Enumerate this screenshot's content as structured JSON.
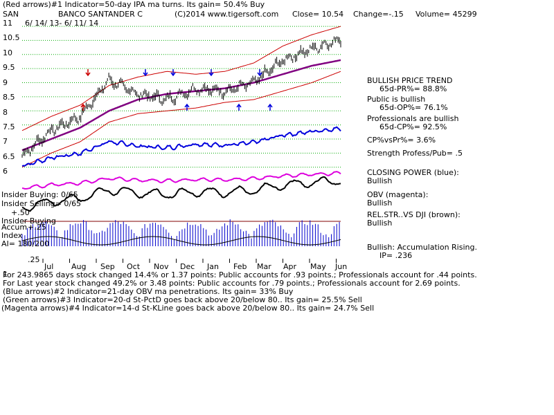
{
  "header": {
    "line1": "(Red arrows)#1 Indicator=50-day IPA ma turns. Its gain= 50.4% Buy",
    "ticker": "SAN",
    "company": "BANCO SANTANDER C",
    "copyright": "(C)2014 www.tigersoft.com",
    "close": "Close= 10.54",
    "change": "Change=-.15",
    "volume": "Volume= 45299",
    "date_range": "6/ 14/ 13- 6/ 11/ 14"
  },
  "price_axis": {
    "ticks": [
      "11",
      "10.5",
      "10",
      "9.5",
      "9",
      "8.5",
      "8",
      "7.5",
      "7",
      "6.5",
      "6"
    ],
    "values": [
      11,
      10.5,
      10,
      9.5,
      9,
      8.5,
      8,
      7.5,
      7,
      6.5,
      6
    ]
  },
  "acc_axis": {
    "ticks": [
      "+.50",
      "+.25",
      ".25"
    ]
  },
  "months": [
    "Jul",
    "Aug",
    "Sep",
    "Oct",
    "Nov",
    "Dec",
    "Jan",
    "Feb",
    "Mar",
    "Apr",
    "May",
    "Jun"
  ],
  "left_labels": {
    "insider_buying_top": "Insider Buying: 0/65",
    "insider_selling": "Insider Selling= 0/65",
    "insider_buying_mid": "Insider Buying",
    "accum": "Accum",
    "index": "Index",
    "ai": "AI= 180/200",
    "bottom_num": "1"
  },
  "right_panel": {
    "trend_title": "BULLISH PRICE TREND",
    "trend_value": "65d-PR%= 88.8%",
    "public_title": "Public is bullish",
    "public_value": "65d-OP%= 76.1%",
    "pro_title": "Professionals are bullish",
    "pro_value": "65d-CP%= 92.5%",
    "cp_vs_pr": "CP%vsPr%= 3.6%",
    "strength": "Strength Profess/Pub= .5",
    "closing_power": "CLOSING POWER (blue):",
    "closing_power_v": "Bullish",
    "obv": "OBV (magenta):",
    "obv_v": "Bullish",
    "relstr": "REL.STR..VS DJI (brown):",
    "relstr_v": "Bullish",
    "accum": "Bullish: Accumulation Rising.",
    "ip": "IP= .236"
  },
  "footer": [
    "For 243.9865 days stock changed 14.4% or 1.37 points: Public accounts for .93 points.; Professionals account for .44 points.",
    "For Last year stock changed 49.2% or 3.48 points: Public accounts for .79 points.; Professionals account for 2.69 points.",
    "(Blue arrows)#2 Indicator=21-day OBV ma penetrations. Its gain= 33% Buy",
    "(Green arrows)#3 Indicator=20-d St-PctD goes back above 20/below 80.. Its gain= 25.5% Sell",
    "(Magenta arrows)#4 Indicator=14-d St-KLine goes back above 20/below 80.. Its gain= 24.7% Sell"
  ],
  "colors": {
    "price": "#000000",
    "band": "#cc0000",
    "ma": "#800080",
    "closing_power": "#0000dd",
    "obv": "#dd00dd",
    "relstr": "#800000",
    "accum": "#0000cc",
    "grid": "#00aa00"
  },
  "chart_data": {
    "type": "line",
    "title": "BANCO SANTANDER C",
    "x": [
      "Jul",
      "Aug",
      "Sep",
      "Oct",
      "Nov",
      "Dec",
      "Jan",
      "Feb",
      "Mar",
      "Apr",
      "May",
      "Jun"
    ],
    "ylim": [
      5.6,
      11.1
    ],
    "series": [
      {
        "name": "Close",
        "values": [
          6.4,
          7.3,
          7.8,
          9.1,
          8.6,
          8.4,
          8.8,
          8.7,
          9.0,
          9.8,
          10.2,
          10.54
        ]
      },
      {
        "name": "50-day MA",
        "values": [
          6.6,
          7.0,
          7.4,
          8.0,
          8.4,
          8.6,
          8.7,
          8.8,
          9.0,
          9.3,
          9.6,
          9.8
        ]
      },
      {
        "name": "Upper band",
        "values": [
          7.3,
          7.8,
          8.2,
          8.9,
          9.2,
          9.4,
          9.3,
          9.4,
          9.7,
          10.3,
          10.7,
          11.0
        ]
      },
      {
        "name": "Lower band",
        "values": [
          6.0,
          6.5,
          6.9,
          7.6,
          7.9,
          8.0,
          8.1,
          8.3,
          8.4,
          8.7,
          9.0,
          9.4
        ]
      }
    ]
  }
}
